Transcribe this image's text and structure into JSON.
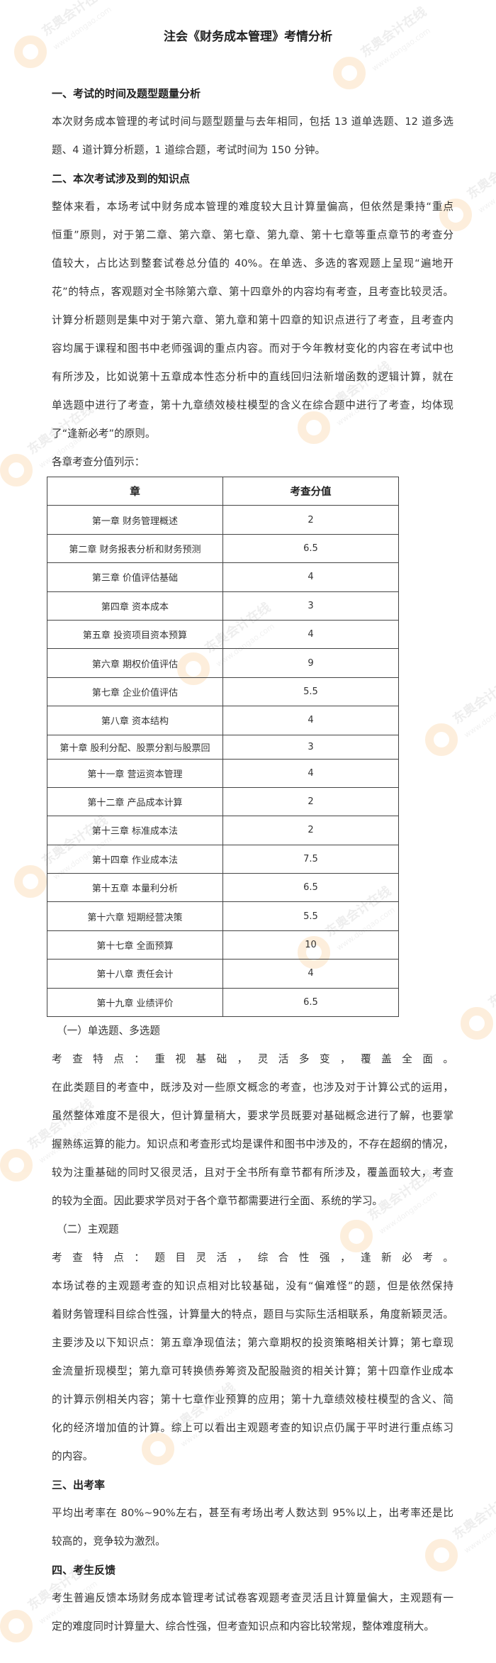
{
  "title": "注会《财务成本管理》考情分析",
  "watermark": {
    "brand": "东奥会计在线",
    "url": "www.dongao.com",
    "color": "#f39a2b"
  },
  "section1": {
    "heading": "一、考试的时间及题型题量分析",
    "lines": [
      "本次财务成本管理的考试时间与题型题量与去年相同，包括 13 道单选题、12 道多选",
      "题、4 道计算分析题，1 道综合题，考试时间为 150 分钟。"
    ]
  },
  "section2": {
    "heading": "二、本次考试涉及到的知识点",
    "lines": [
      "整体来看，本场考试中财务成本管理的难度较大且计算量偏高，但依然是秉持“重点",
      "恒重”原则，对于第二章、第六章、第七章、第九章、第十七章等重点章节的考查分",
      "值较大，占比达到整套试卷总分值的 40%。在单选、多选的客观题上呈现“遍地开",
      "花”的特点，客观题对全书除第六章、第十四章外的内容均有考查，且考查比较灵活。",
      "计算分析题则是集中对于第六章、第九章和第十四章的知识点进行了考查，且考查内",
      "容均属于课程和图书中老师强调的重点内容。而对于今年教材变化的内容在考试中也",
      "有所涉及，比如说第十五章成本性态分析中的直线回归法新增函数的逻辑计算，就在",
      "单选题中进行了考查，第十九章绩效棱柱模型的含义在综合题中进行了考查，均体现",
      "了“逢新必考”的原则。"
    ],
    "table_caption": "各章考查分值列示：",
    "table": {
      "headers": [
        "章",
        "考查分值"
      ],
      "rows": [
        [
          "第一章  财务管理概述",
          "2"
        ],
        [
          "第二章  财务报表分析和财务预测",
          "6.5"
        ],
        [
          "第三章  价值评估基础",
          "4"
        ],
        [
          "第四章  资本成本",
          "3"
        ],
        [
          "第五章  投资项目资本预算",
          "4"
        ],
        [
          "第六章  期权价值评估",
          "9"
        ],
        [
          "第七章  企业价值评估",
          "5.5"
        ],
        [
          "第八章  资本结构",
          "4"
        ],
        [
          "第十章  股利分配、股票分割与股票回",
          "3"
        ],
        [
          "第十一章  营运资本管理",
          "4"
        ],
        [
          "第十二章  产品成本计算",
          "2"
        ],
        [
          "第十三章  标准成本法",
          "2"
        ],
        [
          "第十四章  作业成本法",
          "7.5"
        ],
        [
          "第十五章  本量利分析",
          "6.5"
        ],
        [
          "第十六章  短期经营决策",
          "5.5"
        ],
        [
          "第十七章  全面预算",
          "10"
        ],
        [
          "第十八章  责任会计",
          "4"
        ],
        [
          "第十九章  业绩评价",
          "6.5"
        ]
      ]
    },
    "sub1": {
      "heading": "（一）单选题、多选题",
      "lines": [
        "考查特点：重视基础，灵活多变，覆盖全面。",
        "在此类题目的考查中，既涉及对一些原文概念的考查，也涉及对于计算公式的运用，",
        "虽然整体难度不是很大，但计算量稍大，要求学员既要对基础概念进行了解，也要掌",
        "握熟练运算的能力。知识点和考查形式均是课件和图书中涉及的，不存在超纲的情况，",
        "较为注重基础的同时又很灵活，且对于全书所有章节都有所涉及，覆盖面较大，考查",
        "的较为全面。因此要求学员对于各个章节都需要进行全面、系统的学习。"
      ]
    },
    "sub2": {
      "heading": "（二）主观题",
      "lines": [
        "考查特点：题目灵活，综合性强，逢新必考。",
        "本场试卷的主观题考查的知识点相对比较基础，没有“偏难怪”的题，但是依然保持",
        "着财务管理科目综合性强，计算量大的特点，题目与实际生活相联系，角度新颖灵活。",
        "主要涉及以下知识点：第五章净现值法；第六章期权的投资策略相关计算；第七章现",
        "金流量折现模型；第九章可转换债券筹资及配股融资的相关计算；第十四章作业成本",
        "的计算示例相关内容；第十七章作业预算的应用；第十九章绩效棱柱模型的含义、简",
        "化的经济增加值的计算。综上可以看出主观题考查的知识点仍属于平时进行重点练习",
        "的内容。"
      ]
    }
  },
  "section3": {
    "heading": "三、出考率",
    "lines": [
      "平均出考率在 80%~90%左右，甚至有考场出考人数达到 95%以上，出考率还是比",
      "较高的，竞争较为激烈。"
    ]
  },
  "section4": {
    "heading": "四、考生反馈",
    "lines": [
      "考生普遍反馈本场财务成本管理考试试卷客观题考查灵活且计算量偏大，主观题有一",
      "定的难度同时计算量大、综合性强，但考查知识点和内容比较常规，整体难度稍大。"
    ]
  }
}
